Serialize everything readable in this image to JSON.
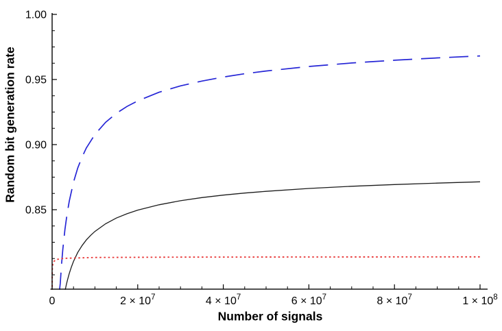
{
  "chart_data": {
    "type": "line",
    "title": "",
    "xlabel": "Number of signals",
    "ylabel": "Random bit generation rate",
    "xlim": [
      0,
      100000000
    ],
    "ylim": [
      0.789,
      1.0
    ],
    "background": "#ffffff",
    "axis_color": "#000000",
    "grid": false,
    "legend": "none",
    "x_ticks": [
      {
        "value": 0,
        "prefix": "0",
        "exp": ""
      },
      {
        "value": 20000000,
        "prefix": "2 × 10",
        "exp": "7"
      },
      {
        "value": 40000000,
        "prefix": "4 × 10",
        "exp": "7"
      },
      {
        "value": 60000000,
        "prefix": "6 × 10",
        "exp": "7"
      },
      {
        "value": 80000000,
        "prefix": "8 × 10",
        "exp": "7"
      },
      {
        "value": 100000000,
        "prefix": "1 × 10",
        "exp": "8"
      }
    ],
    "x_minor_ticks": [
      5000000,
      10000000,
      15000000,
      25000000,
      30000000,
      35000000,
      45000000,
      50000000,
      55000000,
      65000000,
      70000000,
      75000000,
      85000000,
      90000000,
      95000000
    ],
    "y_ticks": [
      {
        "value": 1.0,
        "label": "1.00"
      },
      {
        "value": 0.95,
        "label": "0.95"
      },
      {
        "value": 0.9,
        "label": "0.90"
      },
      {
        "value": 0.85,
        "label": "0.85"
      }
    ],
    "y_minor_ticks": [
      0.9875,
      0.975,
      0.9625,
      0.9375,
      0.925,
      0.9125,
      0.8875,
      0.875,
      0.8625,
      0.8375,
      0.825,
      0.8125,
      0.8
    ],
    "series": [
      {
        "name": "upper-rate-curve-dashed-blue",
        "color": "#2525d6",
        "dash": "28,13",
        "width": 1.7,
        "points": [
          [
            1700000,
            0.787
          ],
          [
            1900000,
            0.7936
          ],
          [
            2200000,
            0.8079
          ],
          [
            2500000,
            0.8195
          ],
          [
            3000000,
            0.8349
          ],
          [
            3500000,
            0.8467
          ],
          [
            4000000,
            0.8565
          ],
          [
            5000000,
            0.8712
          ],
          [
            6000000,
            0.8821
          ],
          [
            7000000,
            0.8905
          ],
          [
            8000000,
            0.8974
          ],
          [
            10000000,
            0.9078
          ],
          [
            12500000,
            0.9171
          ],
          [
            15000000,
            0.924
          ],
          [
            17500000,
            0.9293
          ],
          [
            20000000,
            0.9336
          ],
          [
            25000000,
            0.9402
          ],
          [
            30000000,
            0.9451
          ],
          [
            35000000,
            0.9488
          ],
          [
            40000000,
            0.9519
          ],
          [
            45000000,
            0.9544
          ],
          [
            50000000,
            0.9565
          ],
          [
            60000000,
            0.96
          ],
          [
            70000000,
            0.9627
          ],
          [
            80000000,
            0.9648
          ],
          [
            90000000,
            0.9666
          ],
          [
            100000000,
            0.9681
          ]
        ]
      },
      {
        "name": "middle-rate-curve-solid-black",
        "color": "#1b1b1b",
        "dash": "",
        "width": 1.3,
        "points": [
          [
            3000000,
            0.7874
          ],
          [
            3300000,
            0.7921
          ],
          [
            3600000,
            0.7962
          ],
          [
            4000000,
            0.801
          ],
          [
            4500000,
            0.806
          ],
          [
            5000000,
            0.8103
          ],
          [
            6000000,
            0.8172
          ],
          [
            7000000,
            0.8225
          ],
          [
            8000000,
            0.8268
          ],
          [
            9000000,
            0.8303
          ],
          [
            10000000,
            0.8333
          ],
          [
            12500000,
            0.8392
          ],
          [
            15000000,
            0.8436
          ],
          [
            17500000,
            0.8469
          ],
          [
            20000000,
            0.8497
          ],
          [
            25000000,
            0.8538
          ],
          [
            30000000,
            0.8569
          ],
          [
            35000000,
            0.8593
          ],
          [
            40000000,
            0.8612
          ],
          [
            45000000,
            0.8628
          ],
          [
            50000000,
            0.8641
          ],
          [
            60000000,
            0.8663
          ],
          [
            70000000,
            0.868
          ],
          [
            80000000,
            0.8693
          ],
          [
            90000000,
            0.8704
          ],
          [
            100000000,
            0.8714
          ]
        ]
      },
      {
        "name": "reference-rate-line-dotted-red",
        "color": "#e83535",
        "dash": "2.6,3.6",
        "width": 1.8,
        "points": [
          [
            7000,
            0.7875
          ],
          [
            10000,
            0.792
          ],
          [
            20000,
            0.7984
          ],
          [
            50000,
            0.8042
          ],
          [
            100000,
            0.807
          ],
          [
            300000,
            0.81
          ],
          [
            1000000,
            0.8118
          ],
          [
            3000000,
            0.8127
          ],
          [
            10000000,
            0.8133
          ],
          [
            30000000,
            0.8136
          ],
          [
            60000000,
            0.8137
          ],
          [
            100000000,
            0.8138
          ]
        ]
      }
    ]
  }
}
